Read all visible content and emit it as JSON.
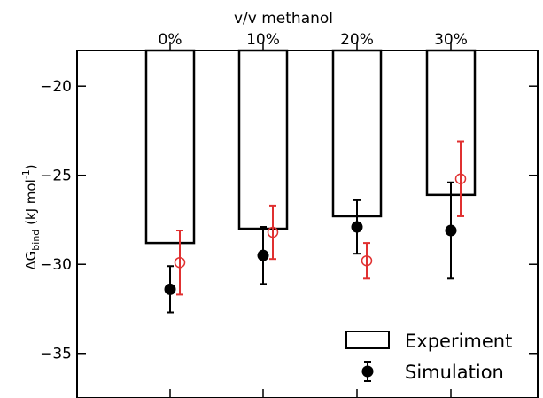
{
  "chart_data": {
    "type": "bar",
    "categories": [
      "0%",
      "10%",
      "20%",
      "30%"
    ],
    "xlabel_top": "v/v methanol",
    "ylabel": {
      "main": "ΔG",
      "sub": "bind",
      "rest": " (kJ mol",
      "sup": "-1",
      "end": ")"
    },
    "ylim": [
      -37.5,
      -18
    ],
    "yticks": [
      -20,
      -25,
      -30,
      -35
    ],
    "ytick_labels": [
      "−20",
      "−25",
      "−30",
      "−35"
    ],
    "grid": false,
    "legend_position": "bottom-right",
    "series": [
      {
        "name": "Experiment",
        "style": "open-bar",
        "values": [
          -28.8,
          -28.0,
          -27.3,
          -26.1
        ]
      },
      {
        "name": "Simulation",
        "style": "filled-circle-errorbar",
        "color": "#000000",
        "values": [
          -31.4,
          -29.5,
          -27.9,
          -28.1
        ],
        "errors": [
          1.3,
          1.6,
          1.5,
          2.7
        ]
      },
      {
        "style": "open-circle-errorbar",
        "color": "#e03030",
        "values": [
          -29.9,
          -28.2,
          -29.8,
          -25.2
        ],
        "errors": [
          1.8,
          1.5,
          1.0,
          2.1
        ]
      }
    ]
  }
}
